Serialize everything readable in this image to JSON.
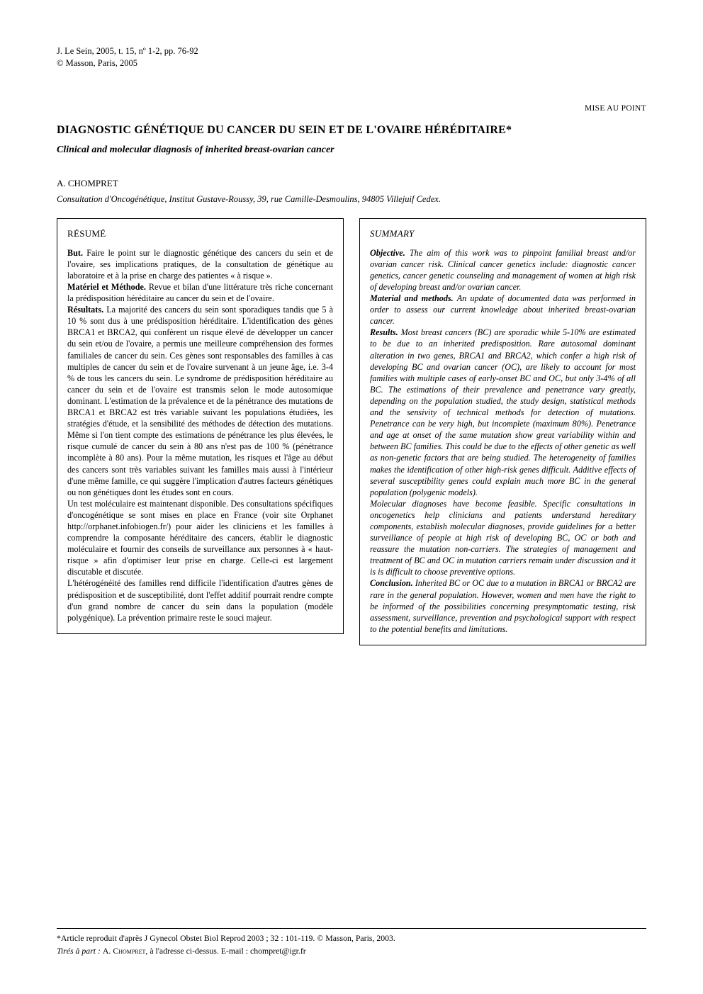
{
  "journal_ref_line1": "J. Le Sein, 2005, t. 15, nº 1-2, pp. 76-92",
  "journal_ref_line2": "© Masson, Paris, 2005",
  "section_tag": "MISE AU POINT",
  "title_fr": "DIAGNOSTIC GÉNÉTIQUE DU CANCER DU SEIN ET DE L'OVAIRE HÉRÉDITAIRE*",
  "title_en": "Clinical and molecular diagnosis of inherited breast-ovarian cancer",
  "author": "A. CHOMPRET",
  "affiliation": "Consultation d'Oncogénétique, Institut Gustave-Roussy, 39, rue Camille-Desmoulins, 94805 Villejuif Cedex.",
  "resume": {
    "heading": "RÉSUMÉ",
    "but_label": "But.",
    "but": " Faire le point sur le diagnostic génétique des cancers du sein et de l'ovaire, ses implications pratiques, de la consultation de génétique au laboratoire et à la prise en charge des patientes « à risque ».",
    "mat_label": "Matériel et Méthode.",
    "mat": " Revue et bilan d'une littérature très riche concernant la prédisposition héréditaire au cancer du sein et de l'ovaire.",
    "res_label": "Résultats.",
    "res": " La majorité des cancers du sein sont sporadiques tandis que 5 à 10 % sont dus à une prédisposition héréditaire. L'identification des gènes BRCA1 et BRCA2, qui confèrent un risque élevé de développer un cancer du sein et/ou de l'ovaire, a permis une meilleure compréhension des formes familiales de cancer du sein. Ces gènes sont responsables des familles à cas multiples de cancer du sein et de l'ovaire survenant à un jeune âge, i.e. 3-4 % de tous les cancers du sein. Le syndrome de prédisposition héréditaire au cancer du sein et de l'ovaire est transmis selon le mode autosomique dominant. L'estimation de la prévalence et de la pénétrance des mutations de BRCA1 et BRCA2 est très variable suivant les populations étudiées, les stratégies d'étude, et la sensibilité des méthodes de détection des mutations. Même si l'on tient compte des estimations de pénétrance les plus élevées, le risque cumulé de cancer du sein à 80 ans n'est pas de 100 % (pénétrance incomplète à 80 ans). Pour la même mutation, les risques et l'âge au début des cancers sont très variables suivant les familles mais aussi à l'intérieur d'une même famille, ce qui suggère l'implication d'autres facteurs génétiques ou non génétiques dont les études sont en cours.",
    "p2": "Un test moléculaire est maintenant disponible. Des consultations spécifiques d'oncogénétique se sont mises en place en France (voir site Orphanet http://orphanet.infobiogen.fr/) pour aider les cliniciens et les familles à comprendre la composante héréditaire des cancers, établir le diagnostic moléculaire et fournir des conseils de surveillance aux personnes à « haut-risque » afin d'optimiser leur prise en charge. Celle-ci est largement discutable et discutée.",
    "p3": "L'hétérogénéité des familles rend difficile l'identification d'autres gènes de prédisposition et de susceptibilité, dont l'effet additif pourrait rendre compte d'un grand nombre de cancer du sein dans la population (modèle polygénique). La prévention primaire reste le souci majeur."
  },
  "summary": {
    "heading": "SUMMARY",
    "obj_label": "Objective.",
    "obj": " The aim of this work was to pinpoint familial breast and/or ovarian cancer risk. Clinical cancer genetics include: diagnostic cancer genetics, cancer genetic counseling and management of women at high risk of developing breast and/or ovarian cancer.",
    "mat_label": "Material and methods.",
    "mat": " An update of documented data was performed in order to assess our current knowledge about inherited breast-ovarian cancer.",
    "res_label": "Results.",
    "res": " Most breast cancers (BC) are sporadic while 5-10% are estimated to be due to an inherited predisposition. Rare autosomal dominant alteration in two genes, BRCA1 and BRCA2, which confer a high risk of developing BC and ovarian cancer (OC), are likely to account for most families with multiple cases of early-onset BC and OC, but only 3-4% of all BC. The estimations of their prevalence and penetrance vary greatly, depending on the population studied, the study design, statistical methods and the sensivity of technical methods for detection of mutations. Penetrance can be very high, but incomplete (maximum 80%). Penetrance and age at onset of the same mutation show great variability within and between BC families. This could be due to the effects of other genetic as well as non-genetic factors that are being studied. The heterogeneity of families makes the identification of other high-risk genes difficult. Additive effects of several susceptibility genes could explain much more BC in the general population (polygenic models).",
    "p2": "Molecular diagnoses have become feasible. Specific consultations in oncogenetics help clinicians and patients understand hereditary components, establish molecular diagnoses, provide guidelines for a better surveillance of people at high risk of developing BC, OC or both and reassure the mutation non-carriers. The strategies of management and treatment of BC and OC in mutation carriers remain under discussion and it is is difficult to choose preventive options.",
    "con_label": "Conclusion.",
    "con": " Inherited BC or OC due to a mutation in BRCA1 or BRCA2 are rare in the general population. However, women and men have the right to be informed of the possibilities concerning presymptomatic testing, risk assessment, surveillance, prevention and psychological support with respect to the potential benefits and limitations."
  },
  "footnote1": "*Article reproduit d'après J Gynecol Obstet Biol Reprod 2003 ; 32 : 101-119. © Masson, Paris, 2003.",
  "footnote2_prefix": "Tirés à part : ",
  "footnote2_author": "A. Chompret",
  "footnote2_rest": ", à l'adresse ci-dessus. E-mail : chompret@igr.fr"
}
